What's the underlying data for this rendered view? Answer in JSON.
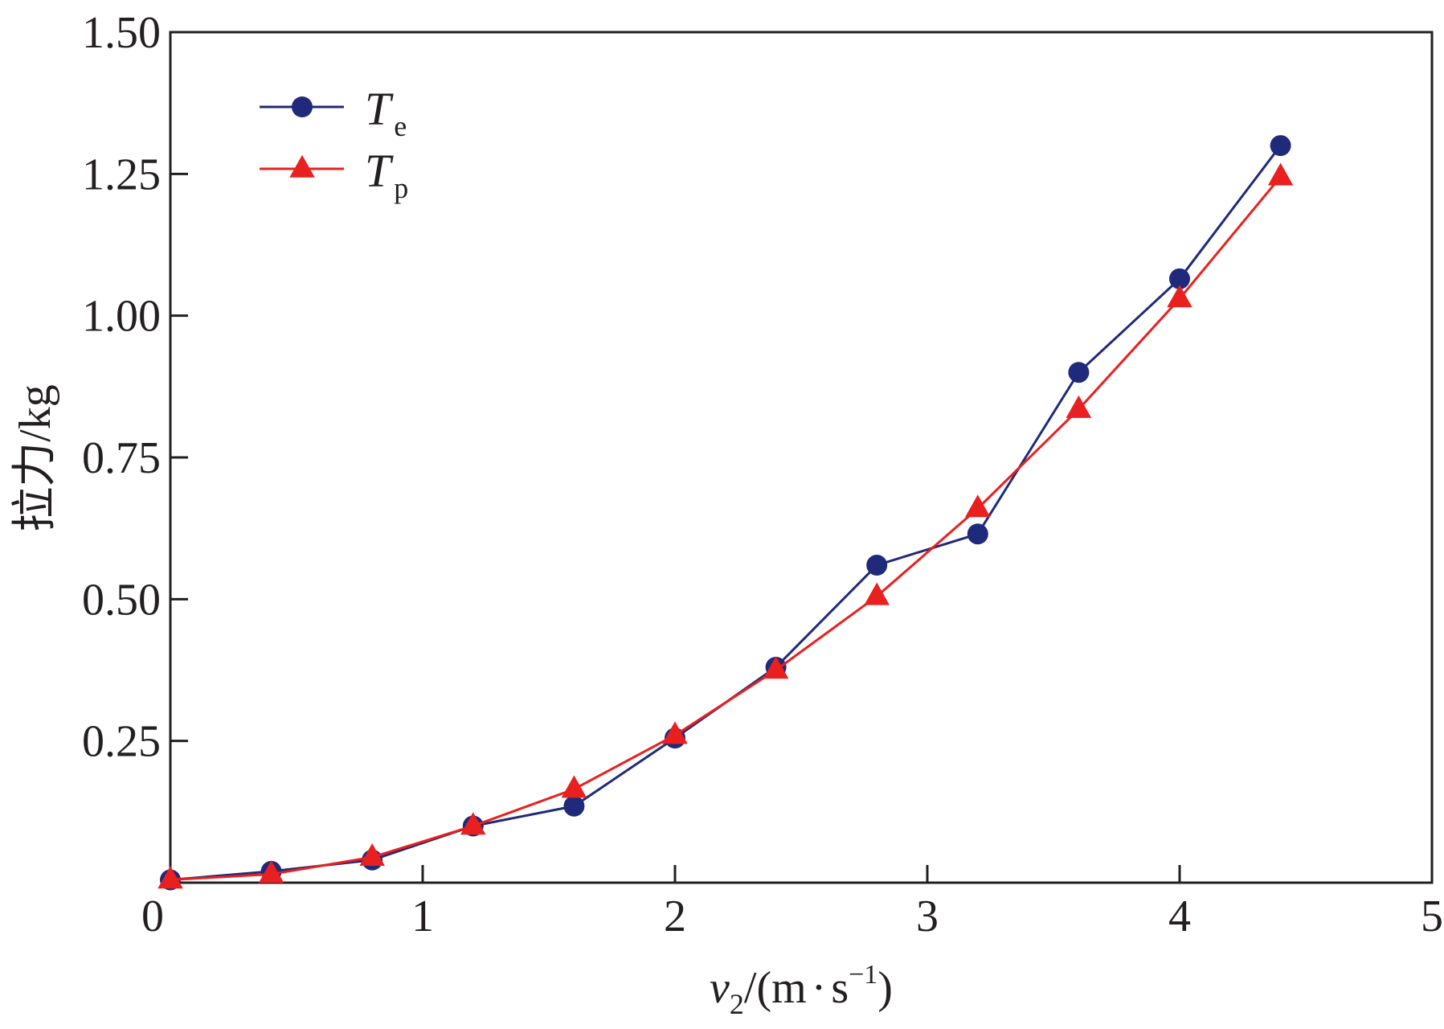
{
  "chart_data": {
    "type": "line",
    "title": "",
    "x": [
      0,
      0.4,
      0.8,
      1.2,
      1.6,
      2.0,
      2.4,
      2.8,
      3.2,
      3.6,
      4.0,
      4.4
    ],
    "xlim": [
      0,
      5
    ],
    "ylim": [
      0,
      1.5
    ],
    "x_ticks": [
      "0",
      "1",
      "2",
      "3",
      "4",
      "5"
    ],
    "x_tick_values": [
      0,
      1,
      2,
      3,
      4,
      5
    ],
    "y_ticks": [
      "0.25",
      "0.50",
      "0.75",
      "1.00",
      "1.25",
      "1.50"
    ],
    "y_tick_values": [
      0.25,
      0.5,
      0.75,
      1.0,
      1.25,
      1.5
    ],
    "xlabel": {
      "var": "v",
      "sub": "2",
      "unit_open": "/(m",
      "dot": "·",
      "unit_s": "s",
      "exp": "−1",
      "unit_close": ")"
    },
    "ylabel": "拉力/kg",
    "grid": false,
    "legend_position": "top-left",
    "series": [
      {
        "name": "T",
        "sub": "e",
        "color": "#1f2a7a",
        "marker": "circle",
        "values": [
          0.005,
          0.02,
          0.04,
          0.1,
          0.135,
          0.255,
          0.38,
          0.56,
          0.615,
          0.9,
          1.065,
          1.3
        ]
      },
      {
        "name": "T",
        "sub": "p",
        "color": "#e8201f",
        "marker": "triangle",
        "values": [
          0.005,
          0.015,
          0.045,
          0.1,
          0.165,
          0.26,
          0.375,
          0.505,
          0.66,
          0.835,
          1.03,
          1.245
        ]
      }
    ]
  }
}
